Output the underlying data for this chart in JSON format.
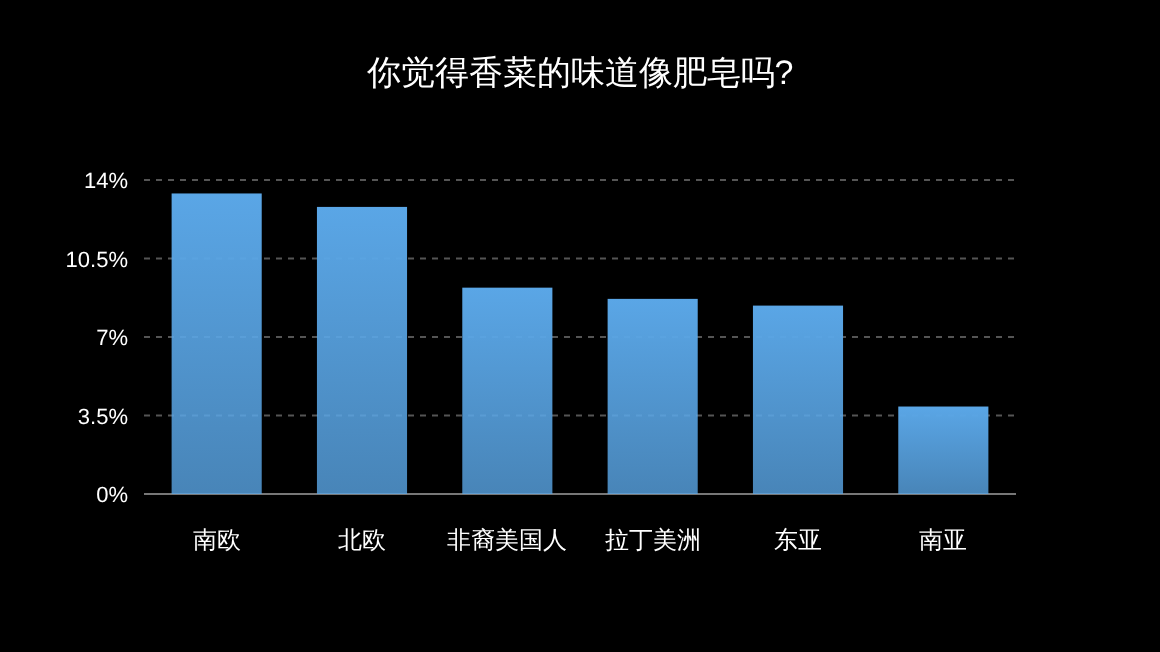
{
  "chart_data": {
    "type": "bar",
    "title": "你觉得香菜的味道像肥皂吗?",
    "categories": [
      "南欧",
      "北欧",
      "非裔美国人",
      "拉丁美洲",
      "东亚",
      "南亚"
    ],
    "values": [
      13.4,
      12.8,
      9.2,
      8.7,
      8.4,
      3.9
    ],
    "color": "#5aa6e6",
    "ylim": [
      0,
      14
    ],
    "yticks": [
      {
        "value": 0,
        "label": "0%"
      },
      {
        "value": 3.5,
        "label": "3.5%"
      },
      {
        "value": 7,
        "label": "7%"
      },
      {
        "value": 10.5,
        "label": "10.5%"
      },
      {
        "value": 14,
        "label": "14%"
      }
    ],
    "grid": "y"
  }
}
